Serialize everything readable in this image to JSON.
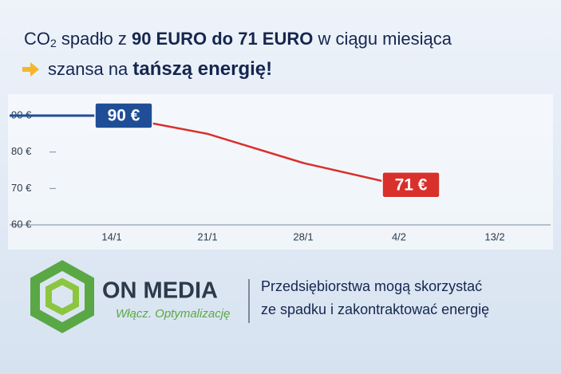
{
  "header": {
    "line1": [
      "CO",
      "2",
      " spadło z ",
      "90 EURO do 71 EURO",
      " w ciągu miesiąca"
    ],
    "line2": [
      "szansa na ",
      "tańszą energię!"
    ]
  },
  "chart_data": {
    "type": "line",
    "categories": [
      "14/1",
      "21/1",
      "28/1",
      "4/2",
      "13/2"
    ],
    "values": [
      90,
      85,
      77,
      71,
      null
    ],
    "value_labels": [
      "90 €",
      null,
      null,
      "71 €",
      null
    ],
    "color": "#d9302c",
    "start_color": "#1f4e96",
    "ylim": [
      60,
      90
    ],
    "yticks": [
      {
        "value": 60,
        "label": "60 €"
      },
      {
        "value": 70,
        "label": "70 €"
      },
      {
        "value": 80,
        "label": "80 €"
      },
      {
        "value": 90,
        "label": "90 €"
      }
    ],
    "grid": false
  },
  "footer": {
    "brand": "ON MEDIA",
    "tagline": "Włącz. Optymalizację",
    "message": [
      "Przedsiębiorstwa mogą skorzystać",
      "ze spadku i zakontraktować energię"
    ]
  }
}
